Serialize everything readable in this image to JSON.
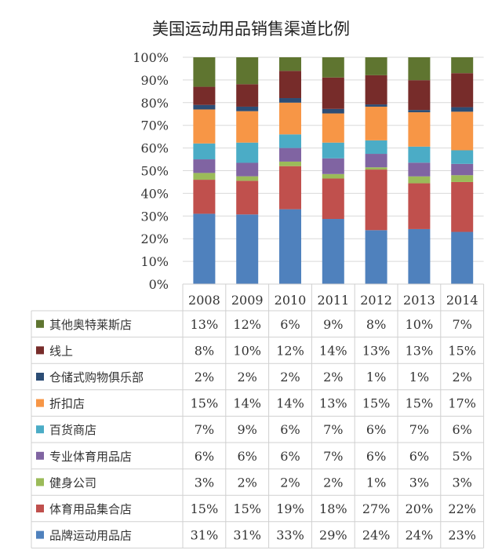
{
  "chart_data": {
    "type": "bar",
    "stacked": "percent",
    "title": "美国运动用品销售渠道比例",
    "categories": [
      "2008",
      "2009",
      "2010",
      "2011",
      "2012",
      "2013",
      "2014"
    ],
    "yticks": [
      "0%",
      "10%",
      "20%",
      "30%",
      "40%",
      "50%",
      "60%",
      "70%",
      "80%",
      "90%",
      "100%"
    ],
    "ylim": [
      0,
      100
    ],
    "grid": true,
    "legend": "data-table-below",
    "series": [
      {
        "name": "品牌运动用品店",
        "color": "#4F81BD",
        "values": [
          31,
          31,
          33,
          29,
          24,
          24,
          23
        ],
        "labels": [
          "31%",
          "31%",
          "33%",
          "29%",
          "24%",
          "24%",
          "23%"
        ]
      },
      {
        "name": "体育用品集合店",
        "color": "#C0504D",
        "values": [
          15,
          15,
          19,
          18,
          27,
          20,
          22
        ],
        "labels": [
          "15%",
          "15%",
          "19%",
          "18%",
          "27%",
          "20%",
          "22%"
        ]
      },
      {
        "name": "健身公司",
        "color": "#9BBB59",
        "values": [
          3,
          2,
          2,
          2,
          1,
          3,
          3
        ],
        "labels": [
          "3%",
          "2%",
          "2%",
          "2%",
          "1%",
          "3%",
          "3%"
        ]
      },
      {
        "name": "专业体育用品店",
        "color": "#8064A2",
        "values": [
          6,
          6,
          6,
          7,
          6,
          6,
          5
        ],
        "labels": [
          "6%",
          "6%",
          "6%",
          "7%",
          "6%",
          "6%",
          "5%"
        ]
      },
      {
        "name": "百货商店",
        "color": "#4BACC6",
        "values": [
          7,
          9,
          6,
          7,
          6,
          7,
          6
        ],
        "labels": [
          "7%",
          "9%",
          "6%",
          "7%",
          "6%",
          "7%",
          "6%"
        ]
      },
      {
        "name": "折扣店",
        "color": "#F79646",
        "values": [
          15,
          14,
          14,
          13,
          15,
          15,
          17
        ],
        "labels": [
          "15%",
          "14%",
          "14%",
          "13%",
          "15%",
          "15%",
          "17%"
        ]
      },
      {
        "name": "仓储式购物俱乐部",
        "color": "#2C4D75",
        "values": [
          2,
          2,
          2,
          2,
          1,
          1,
          2
        ],
        "labels": [
          "2%",
          "2%",
          "2%",
          "2%",
          "1%",
          "1%",
          "2%"
        ]
      },
      {
        "name": "线上",
        "color": "#772C2A",
        "values": [
          8,
          10,
          12,
          14,
          13,
          13,
          15
        ],
        "labels": [
          "8%",
          "10%",
          "12%",
          "14%",
          "13%",
          "13%",
          "15%"
        ]
      },
      {
        "name": "其他奥特莱斯店",
        "color": "#5F7530",
        "values": [
          13,
          12,
          6,
          9,
          8,
          10,
          7
        ],
        "labels": [
          "13%",
          "12%",
          "6%",
          "9%",
          "8%",
          "10%",
          "7%"
        ]
      }
    ]
  }
}
